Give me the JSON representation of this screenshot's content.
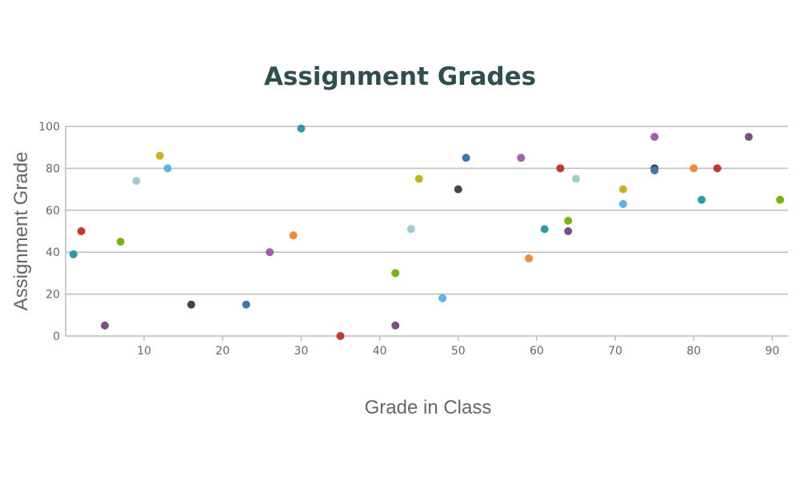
{
  "chart_data": {
    "type": "scatter",
    "title": "Assignment Grades",
    "xlabel": "Grade in Class",
    "ylabel": "Assignment Grade",
    "xlim": [
      0,
      92
    ],
    "ylim": [
      0,
      100
    ],
    "x_ticks": [
      10,
      20,
      30,
      40,
      50,
      60,
      70,
      80,
      90
    ],
    "y_ticks": [
      0,
      20,
      40,
      60,
      80,
      100
    ],
    "grid": "horizontal",
    "legend": "none",
    "points": [
      {
        "x": 1,
        "y": 39,
        "color": "#2e9aa6"
      },
      {
        "x": 2,
        "y": 50,
        "color": "#c0392b"
      },
      {
        "x": 5,
        "y": 5,
        "color": "#7b4f84"
      },
      {
        "x": 7,
        "y": 45,
        "color": "#78b214"
      },
      {
        "x": 9,
        "y": 74,
        "color": "#9ecdcf"
      },
      {
        "x": 12,
        "y": 86,
        "color": "#c8b22a"
      },
      {
        "x": 13,
        "y": 80,
        "color": "#5ab4e5"
      },
      {
        "x": 16,
        "y": 15,
        "color": "#444444"
      },
      {
        "x": 23,
        "y": 15,
        "color": "#3f74b5"
      },
      {
        "x": 26,
        "y": 40,
        "color": "#a25cb0"
      },
      {
        "x": 29,
        "y": 48,
        "color": "#f08a3c"
      },
      {
        "x": 30,
        "y": 99,
        "color": "#2e9aa6"
      },
      {
        "x": 35,
        "y": 0,
        "color": "#c0392b"
      },
      {
        "x": 42,
        "y": 5,
        "color": "#7b4f84"
      },
      {
        "x": 42,
        "y": 30,
        "color": "#78b214"
      },
      {
        "x": 44,
        "y": 51,
        "color": "#9ecdcf"
      },
      {
        "x": 45,
        "y": 75,
        "color": "#c8b22a"
      },
      {
        "x": 48,
        "y": 18,
        "color": "#5ab4e5"
      },
      {
        "x": 50,
        "y": 70,
        "color": "#444444"
      },
      {
        "x": 51,
        "y": 85,
        "color": "#3f74b5"
      },
      {
        "x": 58,
        "y": 85,
        "color": "#a25cb0"
      },
      {
        "x": 59,
        "y": 37,
        "color": "#f08a3c"
      },
      {
        "x": 61,
        "y": 51,
        "color": "#2e9aa6"
      },
      {
        "x": 63,
        "y": 80,
        "color": "#c0392b"
      },
      {
        "x": 64,
        "y": 50,
        "color": "#7b4f84"
      },
      {
        "x": 64,
        "y": 55,
        "color": "#78b214"
      },
      {
        "x": 65,
        "y": 75,
        "color": "#9ecdcf"
      },
      {
        "x": 71,
        "y": 70,
        "color": "#c8b22a"
      },
      {
        "x": 71,
        "y": 63,
        "color": "#5ab4e5"
      },
      {
        "x": 75,
        "y": 80,
        "color": "#444444"
      },
      {
        "x": 75,
        "y": 79,
        "color": "#3f74b5"
      },
      {
        "x": 75,
        "y": 95,
        "color": "#a25cb0"
      },
      {
        "x": 80,
        "y": 80,
        "color": "#f08a3c"
      },
      {
        "x": 81,
        "y": 65,
        "color": "#2e9aa6"
      },
      {
        "x": 83,
        "y": 80,
        "color": "#c0392b"
      },
      {
        "x": 87,
        "y": 95,
        "color": "#7b4f84"
      },
      {
        "x": 91,
        "y": 65,
        "color": "#78b214"
      }
    ]
  },
  "colors": {
    "title": "#2f4f4f",
    "axis_text": "#666666",
    "grid": "#bbbbbb"
  }
}
